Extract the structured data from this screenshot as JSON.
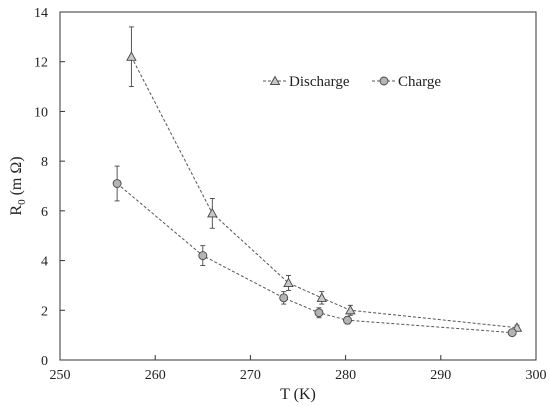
{
  "chart_data": {
    "type": "scatter",
    "title": "",
    "xlabel": "T (K)",
    "ylabel": {
      "main": "R",
      "subscript": "0",
      "unit": "(m Ω)"
    },
    "xlim": [
      250,
      300
    ],
    "ylim": [
      0,
      14
    ],
    "x_ticks": [
      250,
      260,
      270,
      280,
      290,
      300
    ],
    "y_ticks": [
      0,
      2,
      4,
      6,
      8,
      10,
      12,
      14
    ],
    "grid": false,
    "legend_placement": "top-right",
    "series": [
      {
        "name": "Discharge",
        "marker": "triangle",
        "line_style": "dashed",
        "color": "#555555",
        "marker_fill": "#c8c8c8",
        "x": [
          257.5,
          266.0,
          274.0,
          277.5,
          280.5,
          298.0
        ],
        "y": [
          12.2,
          5.9,
          3.1,
          2.5,
          2.0,
          1.3
        ],
        "err": [
          1.2,
          0.6,
          0.3,
          0.25,
          0.2,
          0.1
        ]
      },
      {
        "name": "Charge",
        "marker": "circle",
        "line_style": "dashed",
        "color": "#555555",
        "marker_fill": "#b4b4b4",
        "x": [
          256.0,
          265.0,
          273.5,
          277.2,
          280.2,
          297.5
        ],
        "y": [
          7.1,
          4.2,
          2.5,
          1.9,
          1.6,
          1.1
        ],
        "err": [
          0.7,
          0.4,
          0.25,
          0.2,
          0.15,
          0.1
        ]
      }
    ]
  }
}
